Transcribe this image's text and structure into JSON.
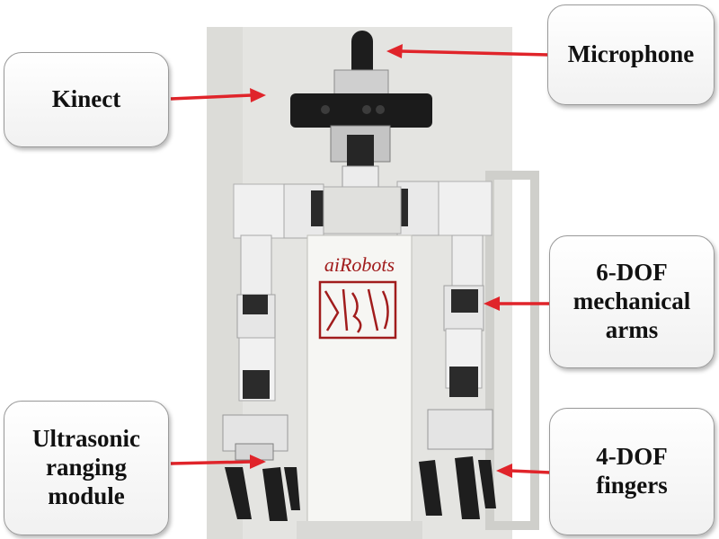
{
  "labels": {
    "microphone": "Microphone",
    "kinect": "Kinect",
    "arms": [
      "6-DOF",
      "mechanical",
      "arms"
    ],
    "ultrasonic": [
      "Ultrasonic",
      "ranging",
      "module"
    ],
    "fingers": [
      "4-DOF",
      "fingers"
    ]
  },
  "chest_logo": "aiRobots",
  "colors": {
    "arrow": "#e0242a",
    "callout_border": "#9a9a9a",
    "logo": "#a11c1c"
  }
}
